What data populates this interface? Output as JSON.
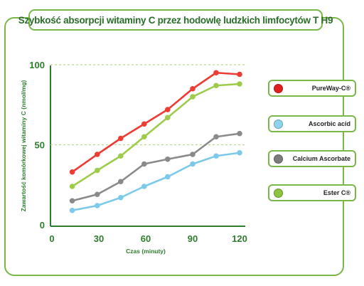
{
  "chart_data": {
    "type": "line",
    "title": "Szybkość absorpcji witaminy C przez hodowlę ludzkich limfocytów T H9",
    "xlabel": "Czas (minuty)",
    "ylabel": "Zawartość komórkowej witaminy C (nmol/mg)",
    "xlim": [
      0,
      128
    ],
    "ylim": [
      0,
      100
    ],
    "xticks": [
      "0",
      "30",
      "60",
      "90",
      "120"
    ],
    "yticks": [
      "0",
      "50",
      "100"
    ],
    "grid": "dashed horizontal at 50 and 100",
    "legend_position": "right",
    "x": [
      13,
      29,
      44,
      59,
      74,
      90,
      105,
      120
    ],
    "series": [
      {
        "name": "PureWay-C®",
        "color": "#e02020",
        "line_color": "#ee3b33",
        "values": [
          33,
          44,
          54,
          63,
          72,
          85,
          95,
          94
        ]
      },
      {
        "name": "Ascorbic acid",
        "color": "#8fd4ef",
        "line_color": "#7cc9ea",
        "values": [
          9,
          12,
          17,
          24,
          30,
          38,
          43,
          45
        ]
      },
      {
        "name": "Calcium Ascorbate",
        "color": "#7c7c7c",
        "line_color": "#8a8a8a",
        "values": [
          15,
          19,
          27,
          38,
          41,
          44,
          55,
          57
        ]
      },
      {
        "name": "Ester C®",
        "color": "#8bc53f",
        "line_color": "#9ccc4a",
        "values": [
          24,
          34,
          43,
          55,
          67,
          80,
          87,
          88
        ]
      }
    ]
  }
}
